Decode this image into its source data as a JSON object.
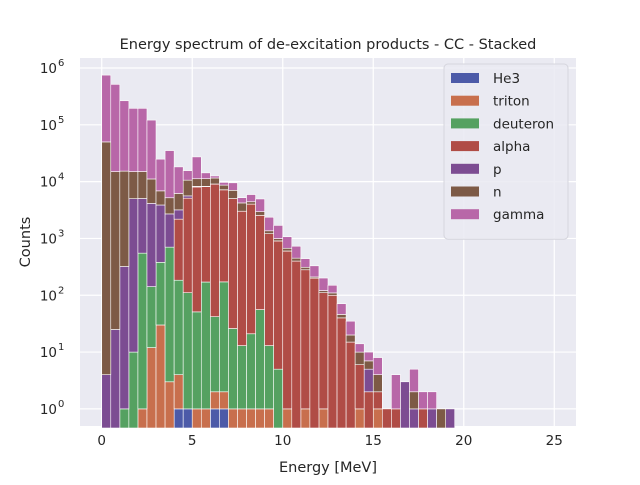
{
  "chart_data": {
    "type": "bar",
    "stacked": true,
    "title": "Energy spectrum of de-excitation products - CC  - Stacked",
    "xlabel": "Energy [MeV]",
    "ylabel": "Counts",
    "xlim": [
      -1.2,
      26.2
    ],
    "ylim": [
      0.5,
      1500000
    ],
    "yscale": "log",
    "grid": true,
    "legend_position": "top-right",
    "bin_width": 0.5,
    "x_ticks": [
      0,
      5,
      10,
      15,
      20,
      25
    ],
    "x_tick_labels": [
      "0",
      "5",
      "10",
      "15",
      "20",
      "25"
    ],
    "y_ticks": [
      1,
      10,
      100,
      1000,
      10000,
      100000,
      1000000
    ],
    "y_tick_labels": [
      "10",
      "10",
      "10",
      "10",
      "10",
      "10",
      "10"
    ],
    "y_tick_exponents": [
      "0",
      "1",
      "2",
      "3",
      "4",
      "5",
      "6"
    ],
    "series": [
      {
        "name": "He3",
        "color": "#4c5aa8",
        "data": [
          [
            4.0,
            1
          ],
          [
            4.5,
            1
          ],
          [
            6.0,
            1
          ],
          [
            6.5,
            1
          ]
        ]
      },
      {
        "name": "triton",
        "color": "#c86f4d",
        "data": [
          [
            2.0,
            1
          ],
          [
            2.5,
            12
          ],
          [
            3.0,
            30
          ],
          [
            3.5,
            3
          ],
          [
            4.0,
            3
          ],
          [
            5.0,
            1
          ],
          [
            5.5,
            1
          ],
          [
            6.0,
            1
          ],
          [
            6.5,
            1
          ],
          [
            7.0,
            1
          ],
          [
            7.5,
            1
          ],
          [
            8.0,
            1
          ],
          [
            8.5,
            1
          ],
          [
            9.0,
            1
          ],
          [
            10.0,
            1
          ],
          [
            11.0,
            1
          ],
          [
            12.0,
            1
          ],
          [
            14.0,
            1
          ],
          [
            15.0,
            1
          ]
        ]
      },
      {
        "name": "deuteron",
        "color": "#55a161",
        "data": [
          [
            1.0,
            1
          ],
          [
            1.5,
            10
          ],
          [
            2.0,
            550
          ],
          [
            2.5,
            130
          ],
          [
            3.0,
            350
          ],
          [
            3.5,
            700
          ],
          [
            4.0,
            180
          ],
          [
            4.5,
            110
          ],
          [
            5.0,
            50
          ],
          [
            5.5,
            170
          ],
          [
            6.0,
            40
          ],
          [
            6.5,
            170
          ],
          [
            7.0,
            25
          ],
          [
            7.5,
            12
          ],
          [
            8.0,
            20
          ],
          [
            8.5,
            55
          ],
          [
            9.0,
            12
          ],
          [
            9.5,
            5
          ]
        ]
      },
      {
        "name": "alpha",
        "color": "#b04c46",
        "data": [
          [
            4.0,
            2000
          ],
          [
            4.5,
            5000
          ],
          [
            5.0,
            8000
          ],
          [
            5.5,
            8000
          ],
          [
            6.0,
            9000
          ],
          [
            6.5,
            7000
          ],
          [
            7.0,
            5000
          ],
          [
            7.5,
            3000
          ],
          [
            8.0,
            4000
          ],
          [
            8.5,
            2500
          ],
          [
            9.0,
            1200
          ],
          [
            9.5,
            900
          ],
          [
            10.0,
            600
          ],
          [
            10.5,
            400
          ],
          [
            11.0,
            280
          ],
          [
            11.5,
            200
          ],
          [
            12.0,
            110
          ],
          [
            12.5,
            100
          ],
          [
            13.0,
            40
          ],
          [
            13.5,
            15
          ],
          [
            14.0,
            5
          ],
          [
            14.5,
            2
          ],
          [
            15.0,
            1
          ],
          [
            15.5,
            1
          ],
          [
            16.0,
            1
          ],
          [
            17.5,
            1
          ]
        ]
      },
      {
        "name": "p",
        "color": "#7c4c92",
        "data": [
          [
            0.0,
            4
          ],
          [
            0.5,
            25
          ],
          [
            1.0,
            320
          ],
          [
            1.5,
            5000
          ],
          [
            2.0,
            4500
          ],
          [
            2.5,
            4000
          ],
          [
            3.0,
            3500
          ],
          [
            3.5,
            2000
          ],
          [
            4.0,
            1000
          ],
          [
            4.5,
            500
          ],
          [
            5.0,
            200
          ],
          [
            5.5,
            100
          ],
          [
            6.0,
            50
          ],
          [
            6.5,
            20
          ],
          [
            7.0,
            10
          ],
          [
            7.5,
            5
          ],
          [
            8.0,
            3
          ],
          [
            8.5,
            2
          ],
          [
            9.0,
            1
          ],
          [
            9.5,
            1
          ],
          [
            10.0,
            1
          ],
          [
            14.5,
            3
          ],
          [
            16.5,
            3
          ],
          [
            17.0,
            1
          ],
          [
            18.0,
            1
          ],
          [
            19.0,
            1
          ]
        ]
      },
      {
        "name": "n",
        "color": "#7d5a46",
        "data": [
          [
            0.0,
            50000
          ],
          [
            0.5,
            15000
          ],
          [
            1.0,
            15000
          ],
          [
            1.5,
            10000
          ],
          [
            2.0,
            10000
          ],
          [
            2.5,
            7000
          ],
          [
            3.0,
            3000
          ],
          [
            3.5,
            2500
          ],
          [
            4.0,
            3000
          ],
          [
            4.5,
            5000
          ],
          [
            5.0,
            3000
          ],
          [
            5.5,
            3000
          ],
          [
            6.0,
            2500
          ],
          [
            6.5,
            1500
          ],
          [
            7.0,
            2000
          ],
          [
            7.5,
            1200
          ],
          [
            8.0,
            400
          ],
          [
            8.5,
            400
          ],
          [
            9.0,
            150
          ],
          [
            9.5,
            90
          ],
          [
            10.0,
            70
          ],
          [
            10.5,
            50
          ],
          [
            11.0,
            30
          ],
          [
            11.5,
            10
          ],
          [
            12.0,
            10
          ],
          [
            12.5,
            10
          ],
          [
            13.0,
            6
          ],
          [
            13.5,
            5
          ],
          [
            14.0,
            4
          ],
          [
            14.5,
            2
          ],
          [
            15.0,
            2
          ],
          [
            17.0,
            1
          ],
          [
            18.5,
            1
          ]
        ]
      },
      {
        "name": "gamma",
        "color": "#b867a8",
        "data": [
          [
            0.0,
            700000
          ],
          [
            0.5,
            500000
          ],
          [
            1.0,
            250000
          ],
          [
            1.5,
            180000
          ],
          [
            2.0,
            180000
          ],
          [
            2.5,
            110000
          ],
          [
            3.0,
            18000
          ],
          [
            3.5,
            30000
          ],
          [
            4.0,
            12000
          ],
          [
            4.5,
            5000
          ],
          [
            5.0,
            16000
          ],
          [
            5.5,
            3000
          ],
          [
            6.0,
            1000
          ],
          [
            6.5,
            1000
          ],
          [
            7.0,
            2500
          ],
          [
            7.5,
            1000
          ],
          [
            8.0,
            1500
          ],
          [
            8.5,
            2000
          ],
          [
            9.0,
            1000
          ],
          [
            9.5,
            700
          ],
          [
            10.0,
            400
          ],
          [
            10.5,
            280
          ],
          [
            11.0,
            130
          ],
          [
            11.5,
            120
          ],
          [
            12.0,
            80
          ],
          [
            12.5,
            40
          ],
          [
            13.0,
            25
          ],
          [
            13.5,
            15
          ],
          [
            14.0,
            4
          ],
          [
            14.5,
            3
          ],
          [
            15.0,
            4
          ],
          [
            16.0,
            3
          ],
          [
            17.0,
            3
          ],
          [
            17.5,
            1
          ],
          [
            18.0,
            1
          ]
        ]
      }
    ]
  }
}
